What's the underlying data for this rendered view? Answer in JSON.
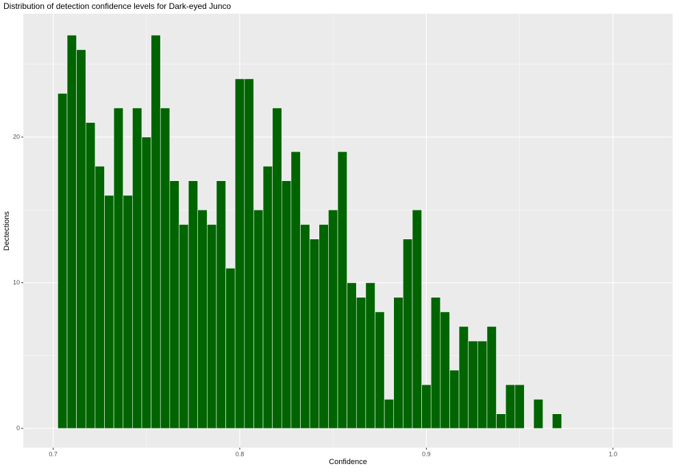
{
  "chart_data": {
    "type": "histogram",
    "title": "Distribution of detection confidence levels for Dark-eyed Junco",
    "x_label": "Confidence",
    "y_label": "Dectections",
    "bins": [
      0.7025,
      0.7075,
      0.7125,
      0.7175,
      0.7225,
      0.7275,
      0.7325,
      0.7375,
      0.7425,
      0.7475,
      0.7525,
      0.7575,
      0.7625,
      0.7675,
      0.7725,
      0.7775,
      0.7825,
      0.7875,
      0.7925,
      0.7975,
      0.8025,
      0.8075,
      0.8125,
      0.8175,
      0.8225,
      0.8275,
      0.8325,
      0.8375,
      0.8425,
      0.8475,
      0.8525,
      0.8575,
      0.8625,
      0.8675,
      0.8725,
      0.8775,
      0.8825,
      0.8875,
      0.8925,
      0.8975,
      0.9025,
      0.9075,
      0.9125,
      0.9175,
      0.9225,
      0.9275,
      0.9325,
      0.9375,
      0.9425,
      0.9475,
      0.9525,
      0.9575,
      0.9625,
      0.9675,
      0.9725
    ],
    "values": [
      23,
      27,
      26,
      21,
      18,
      16,
      22,
      16,
      22,
      20,
      27,
      22,
      17,
      14,
      17,
      15,
      14,
      17,
      11,
      24,
      24,
      15,
      18,
      22,
      17,
      19,
      14,
      13,
      14,
      15,
      19,
      10,
      9,
      10,
      8,
      2,
      9,
      13,
      15,
      3,
      9,
      8,
      4,
      7,
      6,
      6,
      7,
      1,
      3,
      3,
      0,
      2,
      0,
      1
    ],
    "color": "#006400",
    "xlim": [
      0.684,
      1.032
    ],
    "xticks": [
      0.7,
      0.8,
      0.9,
      {
        "value": 1.0,
        "label": "1.0"
      }
    ],
    "minor_xticks": [
      0.75,
      0.85,
      0.95
    ],
    "ylim": [
      -1.32,
      28.47
    ],
    "yticks": [
      0,
      10,
      20
    ],
    "minor_yticks": [
      5,
      15,
      25
    ],
    "grid": true
  }
}
